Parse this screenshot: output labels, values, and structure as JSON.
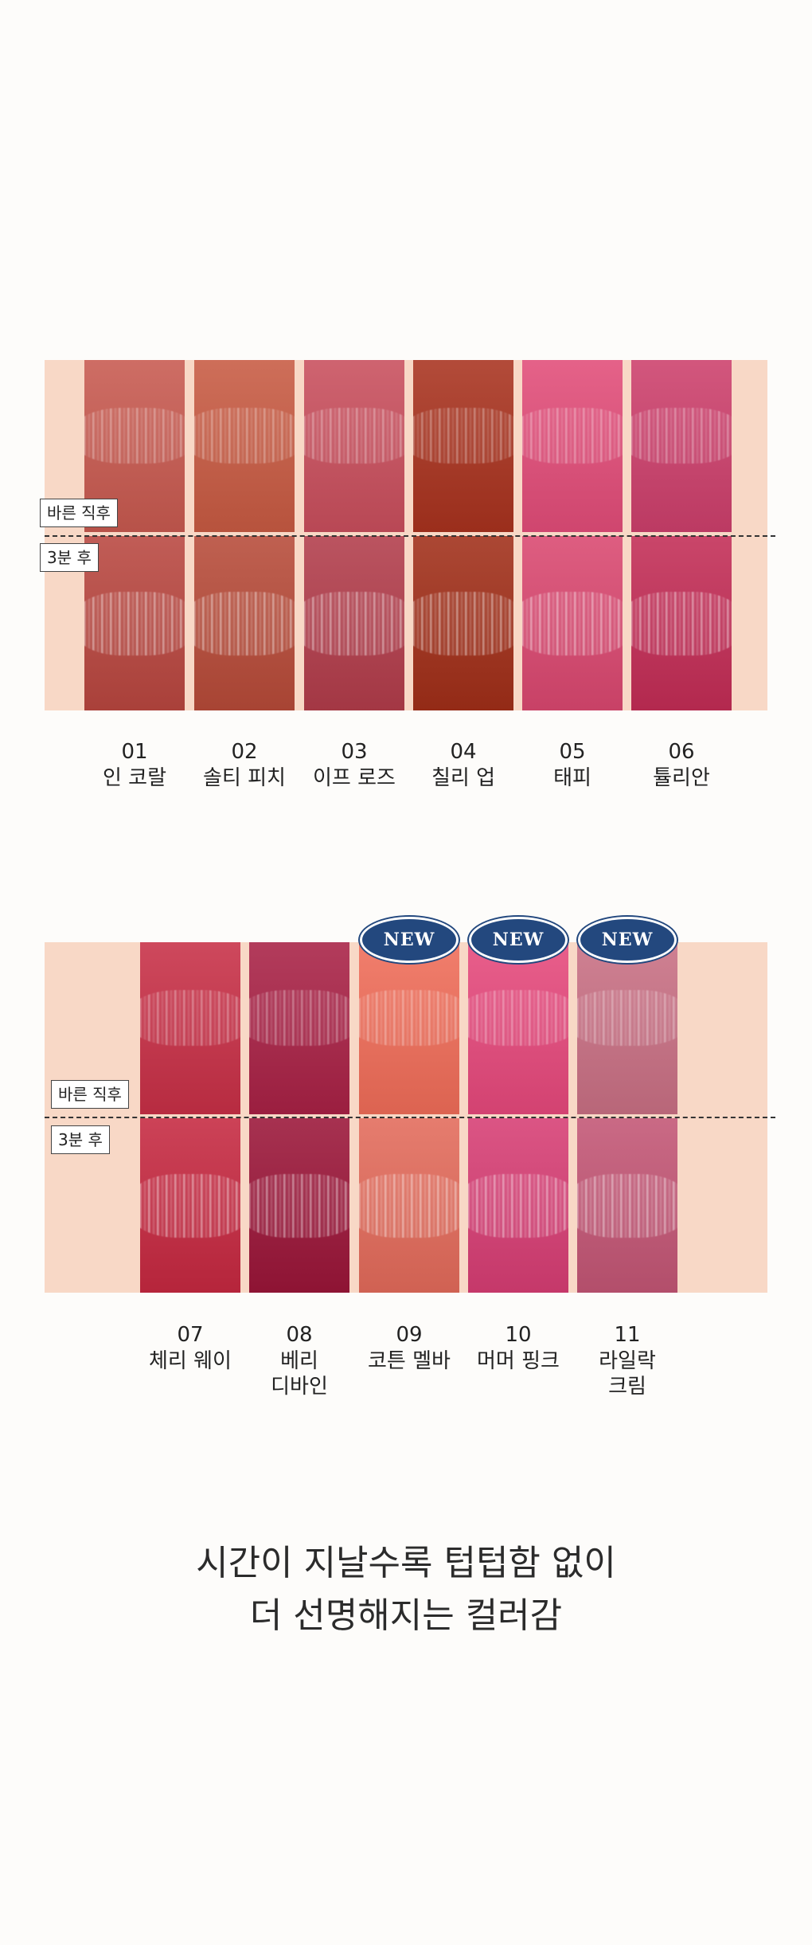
{
  "tags": {
    "before": "바른 직후",
    "after": "3분 후"
  },
  "badge": "NEW",
  "group1": [
    {
      "num": "01",
      "name": "인 코랄",
      "colorTop": "#c7594f",
      "colorBottom": "#b8463f"
    },
    {
      "num": "02",
      "name": "솔티 피치",
      "colorTop": "#c75a42",
      "colorBottom": "#b64a38"
    },
    {
      "num": "03",
      "name": "이프 로즈",
      "colorTop": "#c84e5c",
      "colorBottom": "#b13c4a"
    },
    {
      "num": "04",
      "name": "칠리 업",
      "colorTop": "#a8321e",
      "colorBottom": "#a02e18"
    },
    {
      "num": "05",
      "name": "태피",
      "colorTop": "#e14c78",
      "colorBottom": "#d9476f"
    },
    {
      "num": "06",
      "name": "튤리안",
      "colorTop": "#cc3f6b",
      "colorBottom": "#c22c55"
    }
  ],
  "group2": [
    {
      "num": "07",
      "name": "체리 웨이",
      "colorTop": "#c72f46",
      "colorBottom": "#c52840"
    },
    {
      "num": "08",
      "name": "베리 디바인",
      "colorTop": "#a82145",
      "colorBottom": "#9a1538"
    },
    {
      "num": "09",
      "name": "코튼 멜바",
      "colorTop": "#ef6c58",
      "colorBottom": "#e26a5a",
      "isNew": true
    },
    {
      "num": "10",
      "name": "머머 핑크",
      "colorTop": "#e5487b",
      "colorBottom": "#d63d73",
      "isNew": true
    },
    {
      "num": "11",
      "name": "라일락 크림",
      "colorTop": "#c86f83",
      "colorBottom": "#c25574",
      "isNew": true
    }
  ],
  "caption": {
    "line1": "시간이 지날수록 텁텁함 없이",
    "line2": "더 선명해지는 컬러감"
  }
}
